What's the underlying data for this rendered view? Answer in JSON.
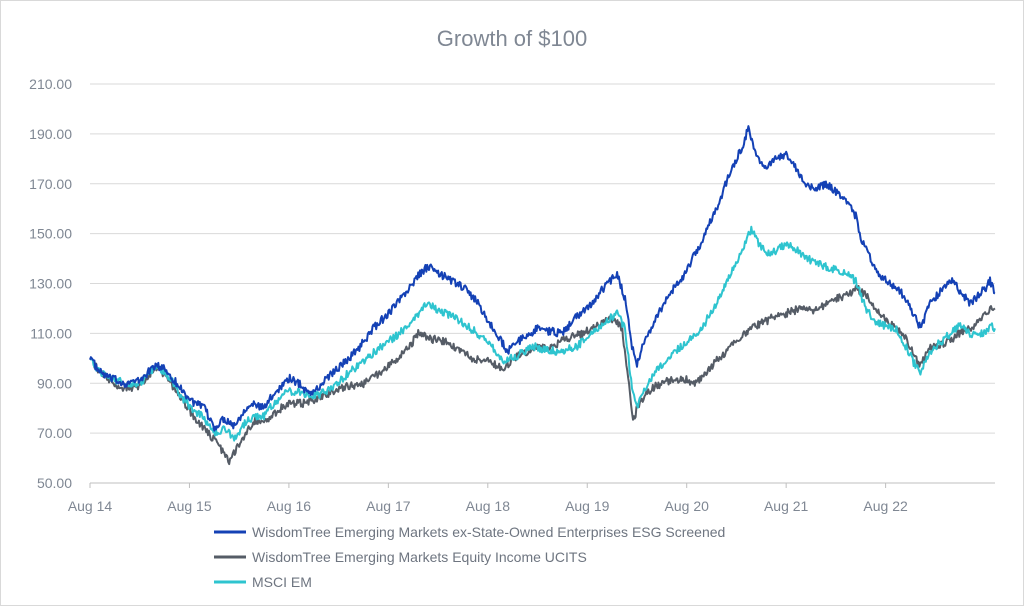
{
  "chart_data": {
    "type": "line",
    "title": "Growth of $100",
    "ylim": [
      50,
      210
    ],
    "y_ticks": [
      "50.00",
      "70.00",
      "90.00",
      "110.00",
      "130.00",
      "150.00",
      "170.00",
      "190.00",
      "210.00"
    ],
    "x_ticks": [
      "Aug 14",
      "Aug 15",
      "Aug 16",
      "Aug 17",
      "Aug 18",
      "Aug 19",
      "Aug 20",
      "Aug 21",
      "Aug 22"
    ],
    "grid": "horizontal",
    "legend_position": "bottom",
    "x_unit": "years since Aug 14",
    "series": [
      {
        "name": "WisdomTree Emerging Markets ex-State-Owned Enterprises ESG Screened",
        "color": "#1441b5",
        "points": [
          [
            0,
            101
          ],
          [
            0.08,
            95
          ],
          [
            0.2,
            92
          ],
          [
            0.35,
            90
          ],
          [
            0.5,
            91
          ],
          [
            0.65,
            97
          ],
          [
            0.75,
            96
          ],
          [
            0.85,
            91
          ],
          [
            0.95,
            86
          ],
          [
            1.05,
            82
          ],
          [
            1.15,
            80
          ],
          [
            1.25,
            72
          ],
          [
            1.35,
            76
          ],
          [
            1.45,
            73
          ],
          [
            1.6,
            82
          ],
          [
            1.75,
            80
          ],
          [
            1.85,
            86
          ],
          [
            2.0,
            92
          ],
          [
            2.1,
            90
          ],
          [
            2.2,
            86
          ],
          [
            2.3,
            88
          ],
          [
            2.4,
            93
          ],
          [
            2.55,
            98
          ],
          [
            2.7,
            104
          ],
          [
            2.85,
            112
          ],
          [
            3.0,
            118
          ],
          [
            3.15,
            125
          ],
          [
            3.3,
            133
          ],
          [
            3.4,
            137
          ],
          [
            3.5,
            134
          ],
          [
            3.65,
            131
          ],
          [
            3.8,
            127
          ],
          [
            3.9,
            122
          ],
          [
            4.0,
            115
          ],
          [
            4.1,
            109
          ],
          [
            4.2,
            103
          ],
          [
            4.35,
            108
          ],
          [
            4.5,
            112
          ],
          [
            4.6,
            111
          ],
          [
            4.75,
            110
          ],
          [
            4.9,
            117
          ],
          [
            5.0,
            120
          ],
          [
            5.1,
            125
          ],
          [
            5.2,
            130
          ],
          [
            5.3,
            134
          ],
          [
            5.38,
            124
          ],
          [
            5.45,
            105
          ],
          [
            5.5,
            98
          ],
          [
            5.58,
            107
          ],
          [
            5.7,
            117
          ],
          [
            5.85,
            127
          ],
          [
            6.0,
            135
          ],
          [
            6.15,
            147
          ],
          [
            6.3,
            160
          ],
          [
            6.45,
            176
          ],
          [
            6.55,
            184
          ],
          [
            6.62,
            192
          ],
          [
            6.7,
            182
          ],
          [
            6.8,
            176
          ],
          [
            6.9,
            180
          ],
          [
            7.0,
            182
          ],
          [
            7.1,
            176
          ],
          [
            7.2,
            170
          ],
          [
            7.3,
            168
          ],
          [
            7.4,
            170
          ],
          [
            7.5,
            167
          ],
          [
            7.6,
            164
          ],
          [
            7.7,
            157
          ],
          [
            7.75,
            148
          ],
          [
            7.85,
            140
          ],
          [
            7.95,
            133
          ],
          [
            8.05,
            130
          ],
          [
            8.15,
            127
          ],
          [
            8.25,
            120
          ],
          [
            8.35,
            112
          ],
          [
            8.45,
            122
          ],
          [
            8.55,
            127
          ],
          [
            8.65,
            132
          ],
          [
            8.75,
            127
          ],
          [
            8.85,
            122
          ],
          [
            9.0,
            128
          ],
          [
            9.05,
            131
          ],
          [
            9.1,
            126
          ]
        ]
      },
      {
        "name": "WisdomTree Emerging Markets Equity Income UCITS",
        "color": "#555c66",
        "points": [
          [
            0,
            101
          ],
          [
            0.08,
            95
          ],
          [
            0.2,
            91
          ],
          [
            0.35,
            88
          ],
          [
            0.5,
            89
          ],
          [
            0.65,
            96
          ],
          [
            0.75,
            94
          ],
          [
            0.85,
            88
          ],
          [
            0.95,
            82
          ],
          [
            1.05,
            76
          ],
          [
            1.15,
            72
          ],
          [
            1.25,
            67
          ],
          [
            1.35,
            62
          ],
          [
            1.4,
            59
          ],
          [
            1.5,
            66
          ],
          [
            1.65,
            75
          ],
          [
            1.75,
            74
          ],
          [
            1.85,
            78
          ],
          [
            2.0,
            82
          ],
          [
            2.15,
            82
          ],
          [
            2.3,
            84
          ],
          [
            2.45,
            87
          ],
          [
            2.6,
            89
          ],
          [
            2.75,
            90
          ],
          [
            2.9,
            94
          ],
          [
            3.0,
            97
          ],
          [
            3.1,
            100
          ],
          [
            3.2,
            104
          ],
          [
            3.3,
            110
          ],
          [
            3.4,
            108
          ],
          [
            3.55,
            107
          ],
          [
            3.7,
            104
          ],
          [
            3.85,
            100
          ],
          [
            4.0,
            99
          ],
          [
            4.15,
            96
          ],
          [
            4.3,
            101
          ],
          [
            4.5,
            104
          ],
          [
            4.65,
            105
          ],
          [
            4.8,
            108
          ],
          [
            4.95,
            110
          ],
          [
            5.1,
            113
          ],
          [
            5.25,
            116
          ],
          [
            5.35,
            112
          ],
          [
            5.42,
            90
          ],
          [
            5.46,
            75
          ],
          [
            5.52,
            82
          ],
          [
            5.65,
            88
          ],
          [
            5.8,
            91
          ],
          [
            5.95,
            92
          ],
          [
            6.1,
            90
          ],
          [
            6.25,
            97
          ],
          [
            6.4,
            103
          ],
          [
            6.55,
            109
          ],
          [
            6.7,
            113
          ],
          [
            6.85,
            116
          ],
          [
            7.0,
            118
          ],
          [
            7.15,
            120
          ],
          [
            7.3,
            119
          ],
          [
            7.45,
            123
          ],
          [
            7.6,
            125
          ],
          [
            7.7,
            128
          ],
          [
            7.8,
            126
          ],
          [
            7.9,
            120
          ],
          [
            8.0,
            115
          ],
          [
            8.1,
            112
          ],
          [
            8.2,
            108
          ],
          [
            8.3,
            100
          ],
          [
            8.35,
            97
          ],
          [
            8.45,
            104
          ],
          [
            8.6,
            106
          ],
          [
            8.75,
            110
          ],
          [
            8.85,
            112
          ],
          [
            9.0,
            117
          ],
          [
            9.05,
            120
          ],
          [
            9.1,
            120
          ]
        ]
      },
      {
        "name": "MSCI EM",
        "color": "#2ec4cf",
        "points": [
          [
            0,
            101
          ],
          [
            0.08,
            95
          ],
          [
            0.2,
            92
          ],
          [
            0.35,
            90
          ],
          [
            0.5,
            90
          ],
          [
            0.65,
            96
          ],
          [
            0.75,
            95
          ],
          [
            0.85,
            89
          ],
          [
            0.95,
            83
          ],
          [
            1.05,
            79
          ],
          [
            1.15,
            76
          ],
          [
            1.25,
            70
          ],
          [
            1.35,
            72
          ],
          [
            1.45,
            68
          ],
          [
            1.6,
            76
          ],
          [
            1.75,
            77
          ],
          [
            1.85,
            82
          ],
          [
            2.0,
            87
          ],
          [
            2.15,
            86
          ],
          [
            2.3,
            85
          ],
          [
            2.45,
            89
          ],
          [
            2.6,
            94
          ],
          [
            2.75,
            99
          ],
          [
            2.9,
            104
          ],
          [
            3.05,
            108
          ],
          [
            3.2,
            113
          ],
          [
            3.3,
            118
          ],
          [
            3.4,
            122
          ],
          [
            3.5,
            119
          ],
          [
            3.65,
            117
          ],
          [
            3.8,
            113
          ],
          [
            3.95,
            108
          ],
          [
            4.05,
            104
          ],
          [
            4.15,
            99
          ],
          [
            4.3,
            101
          ],
          [
            4.45,
            105
          ],
          [
            4.6,
            103
          ],
          [
            4.75,
            103
          ],
          [
            4.9,
            105
          ],
          [
            5.05,
            110
          ],
          [
            5.2,
            115
          ],
          [
            5.3,
            118
          ],
          [
            5.38,
            112
          ],
          [
            5.45,
            88
          ],
          [
            5.5,
            80
          ],
          [
            5.58,
            88
          ],
          [
            5.7,
            95
          ],
          [
            5.85,
            101
          ],
          [
            6.0,
            107
          ],
          [
            6.15,
            112
          ],
          [
            6.3,
            122
          ],
          [
            6.45,
            134
          ],
          [
            6.55,
            143
          ],
          [
            6.65,
            152
          ],
          [
            6.75,
            144
          ],
          [
            6.85,
            142
          ],
          [
            7.0,
            146
          ],
          [
            7.15,
            142
          ],
          [
            7.3,
            138
          ],
          [
            7.45,
            136
          ],
          [
            7.6,
            134
          ],
          [
            7.7,
            131
          ],
          [
            7.8,
            120
          ],
          [
            7.9,
            115
          ],
          [
            8.0,
            113
          ],
          [
            8.1,
            112
          ],
          [
            8.2,
            105
          ],
          [
            8.3,
            97
          ],
          [
            8.35,
            94
          ],
          [
            8.45,
            103
          ],
          [
            8.6,
            108
          ],
          [
            8.75,
            114
          ],
          [
            8.85,
            110
          ],
          [
            9.0,
            110
          ],
          [
            9.05,
            113
          ],
          [
            9.1,
            112
          ]
        ]
      }
    ]
  }
}
